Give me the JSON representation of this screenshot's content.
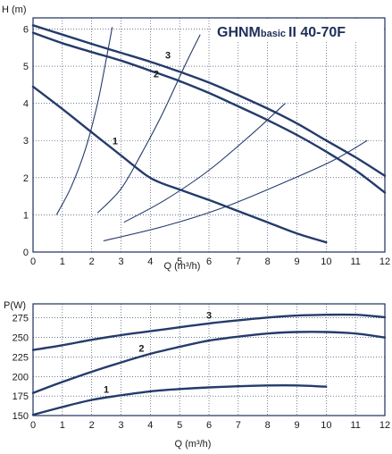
{
  "title": {
    "prefix": "GHNM",
    "sub": "basic",
    "suffix": "II 40-70F"
  },
  "chart_data": [
    {
      "type": "line",
      "ylabel": "H (m)",
      "xlabel": "Q (m³/h)",
      "xlim": [
        0,
        12
      ],
      "ylim": [
        0,
        6.3
      ],
      "xticks": [
        "0",
        "1",
        "2",
        "3",
        "4",
        "5",
        "6",
        "7",
        "8",
        "9",
        "10",
        "11",
        "12"
      ],
      "yticks": [
        "0",
        "1",
        "2",
        "3",
        "4",
        "5",
        "6"
      ],
      "grid": true,
      "series": [
        {
          "name": "1",
          "points": [
            [
              0,
              4.45
            ],
            [
              1,
              3.85
            ],
            [
              2,
              3.22
            ],
            [
              3,
              2.6
            ],
            [
              3.8,
              2.1
            ],
            [
              4.3,
              1.88
            ],
            [
              5,
              1.68
            ],
            [
              6,
              1.4
            ],
            [
              7,
              1.1
            ],
            [
              8,
              0.8
            ],
            [
              9,
              0.5
            ],
            [
              10,
              0.26
            ]
          ],
          "label_at": [
            2.8,
            2.9
          ]
        },
        {
          "name": "2",
          "points": [
            [
              0,
              5.9
            ],
            [
              1,
              5.62
            ],
            [
              2,
              5.38
            ],
            [
              3,
              5.15
            ],
            [
              4,
              4.88
            ],
            [
              5,
              4.6
            ],
            [
              6,
              4.28
            ],
            [
              7,
              3.92
            ],
            [
              8,
              3.55
            ],
            [
              9,
              3.15
            ],
            [
              10,
              2.7
            ],
            [
              11,
              2.2
            ],
            [
              12,
              1.6
            ]
          ],
          "label_at": [
            4.2,
            4.7
          ]
        },
        {
          "name": "3",
          "points": [
            [
              0,
              6.1
            ],
            [
              1,
              5.85
            ],
            [
              2,
              5.6
            ],
            [
              3,
              5.36
            ],
            [
              4,
              5.12
            ],
            [
              5,
              4.85
            ],
            [
              6,
              4.56
            ],
            [
              7,
              4.22
            ],
            [
              8,
              3.86
            ],
            [
              9,
              3.46
            ],
            [
              10,
              3.0
            ],
            [
              11,
              2.55
            ],
            [
              12,
              2.05
            ]
          ],
          "label_at": [
            4.6,
            5.2
          ]
        }
      ],
      "system_curves": [
        [
          [
            0.8,
            1.0
          ],
          [
            1.3,
            1.75
          ],
          [
            1.8,
            2.8
          ],
          [
            2.2,
            4.0
          ],
          [
            2.5,
            5.2
          ],
          [
            2.7,
            6.05
          ]
        ],
        [
          [
            2.2,
            1.05
          ],
          [
            3.0,
            1.7
          ],
          [
            3.7,
            2.65
          ],
          [
            4.4,
            3.7
          ],
          [
            5.2,
            5.05
          ],
          [
            5.7,
            5.85
          ]
        ],
        [
          [
            3.1,
            0.8
          ],
          [
            4.5,
            1.4
          ],
          [
            6.0,
            2.2
          ],
          [
            7.5,
            3.2
          ],
          [
            8.6,
            4.0
          ]
        ],
        [
          [
            2.4,
            0.3
          ],
          [
            4.5,
            0.7
          ],
          [
            6.5,
            1.2
          ],
          [
            8.5,
            1.85
          ],
          [
            10.2,
            2.45
          ],
          [
            11.4,
            3.0
          ]
        ]
      ]
    },
    {
      "type": "line",
      "ylabel": "P(W)",
      "xlabel": "Q (m³/h)",
      "xlim": [
        0,
        12
      ],
      "ylim": [
        150,
        293
      ],
      "xticks": [
        "0",
        "1",
        "2",
        "3",
        "4",
        "5",
        "6",
        "7",
        "8",
        "9",
        "10",
        "11",
        "12"
      ],
      "yticks": [
        "150",
        "175",
        "200",
        "225",
        "250",
        "275"
      ],
      "grid": true,
      "series": [
        {
          "name": "1",
          "points": [
            [
              0,
              151
            ],
            [
              1,
              161
            ],
            [
              2,
              170
            ],
            [
              3,
              176
            ],
            [
              4,
              181
            ],
            [
              5,
              184
            ],
            [
              6,
              186
            ],
            [
              7,
              187.5
            ],
            [
              8,
              188.5
            ],
            [
              9,
              188.5
            ],
            [
              10,
              187
            ]
          ],
          "label_at": [
            2.5,
            179
          ]
        },
        {
          "name": "2",
          "points": [
            [
              0,
              179
            ],
            [
              1,
              193
            ],
            [
              2,
              206
            ],
            [
              3,
              218
            ],
            [
              4,
              229
            ],
            [
              5,
              238
            ],
            [
              6,
              246
            ],
            [
              7,
              251
            ],
            [
              8,
              255
            ],
            [
              9,
              257
            ],
            [
              10,
              257
            ],
            [
              11,
              255
            ],
            [
              12,
              250
            ]
          ],
          "label_at": [
            3.7,
            232
          ]
        },
        {
          "name": "3",
          "points": [
            [
              0,
              234
            ],
            [
              1,
              240
            ],
            [
              2,
              247
            ],
            [
              3,
              253
            ],
            [
              4,
              258
            ],
            [
              5,
              263
            ],
            [
              6,
              268
            ],
            [
              7,
              272
            ],
            [
              8,
              275.5
            ],
            [
              9,
              278
            ],
            [
              10,
              279
            ],
            [
              11,
              279
            ],
            [
              12,
              276
            ]
          ],
          "label_at": [
            6.0,
            274
          ]
        }
      ]
    }
  ]
}
